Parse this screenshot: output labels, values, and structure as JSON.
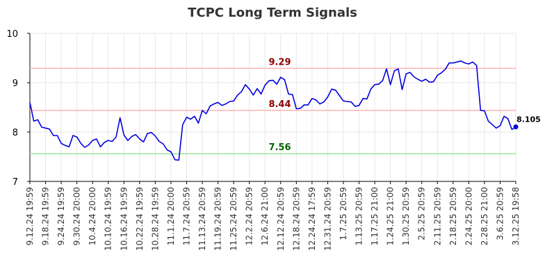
{
  "chart_data": {
    "type": "line",
    "title": "TCPC Long Term Signals",
    "xlabel": "",
    "ylabel": "",
    "ylim": [
      7,
      10
    ],
    "yticks": [
      7,
      8,
      9,
      10
    ],
    "grid": true,
    "colors": {
      "line": "#0000dd",
      "upper": "#ffb3b3",
      "lower": "#99e699",
      "upper_text": "#8b0000",
      "lower_text": "#006400"
    },
    "signal_lines": [
      {
        "label": "9.29",
        "value": 9.29,
        "kind": "upper"
      },
      {
        "label": "8.44",
        "value": 8.44,
        "kind": "upper"
      },
      {
        "label": "7.56",
        "value": 7.56,
        "kind": "lower"
      }
    ],
    "last_value_label": "8.105",
    "x_tick_labels": [
      "9.12.24 19:59",
      "9.18.24 19:59",
      "9.24.24 19:59",
      "9.30.24 20:00",
      "10.4.24 20:00",
      "10.10.24 19:59",
      "10.16.24 19:59",
      "10.22.24 19:59",
      "10.28.24 19:59",
      "11.1.24 20:00",
      "11.7.24 20:59",
      "11.13.24 20:59",
      "11.19.24 20:59",
      "11.25.24 20:59",
      "12.2.24 20:59",
      "12.6.24 21:00",
      "12.12.24 20:59",
      "12.18.24 20:59",
      "12.24.24 17:59",
      "12.31.24 20:59",
      "1.7.25 20:59",
      "1.13.25 20:59",
      "1.17.25 21:00",
      "1.24.25 21:00",
      "1.30.25 20:59",
      "2.5.25 20:59",
      "2.11.25 20:59",
      "2.18.25 20:59",
      "2.24.25 20:00",
      "2.28.25 21:00",
      "3.6.25 20:59",
      "3.12.25 19:58"
    ],
    "series": [
      {
        "values": [
          8.6,
          8.22,
          8.25,
          8.1,
          8.08,
          8.06,
          7.93,
          7.93,
          7.77,
          7.73,
          7.7,
          7.93,
          7.9,
          7.77,
          7.69,
          7.74,
          7.83,
          7.86,
          7.7,
          7.79,
          7.83,
          7.81,
          7.9,
          8.29,
          7.94,
          7.83,
          7.91,
          7.95,
          7.86,
          7.8,
          7.97,
          7.99,
          7.92,
          7.81,
          7.76,
          7.64,
          7.6,
          7.44,
          7.43,
          8.15,
          8.3,
          8.26,
          8.32,
          8.18,
          8.44,
          8.37,
          8.53,
          8.57,
          8.6,
          8.54,
          8.57,
          8.62,
          8.63,
          8.75,
          8.82,
          8.96,
          8.87,
          8.75,
          8.88,
          8.77,
          8.95,
          9.04,
          9.05,
          8.97,
          9.11,
          9.06,
          8.77,
          8.76,
          8.47,
          8.48,
          8.55,
          8.55,
          8.68,
          8.65,
          8.57,
          8.61,
          8.71,
          8.87,
          8.85,
          8.74,
          8.63,
          8.62,
          8.61,
          8.52,
          8.54,
          8.68,
          8.67,
          8.87,
          8.96,
          8.97,
          9.04,
          9.28,
          8.96,
          9.24,
          9.28,
          8.86,
          9.18,
          9.21,
          9.12,
          9.07,
          9.03,
          9.07,
          9.01,
          9.02,
          9.15,
          9.2,
          9.27,
          9.4,
          9.4,
          9.42,
          9.44,
          9.4,
          9.38,
          9.42,
          9.35,
          8.44,
          8.43,
          8.22,
          8.15,
          8.08,
          8.13,
          8.32,
          8.27,
          8.05,
          8.105
        ]
      }
    ]
  }
}
